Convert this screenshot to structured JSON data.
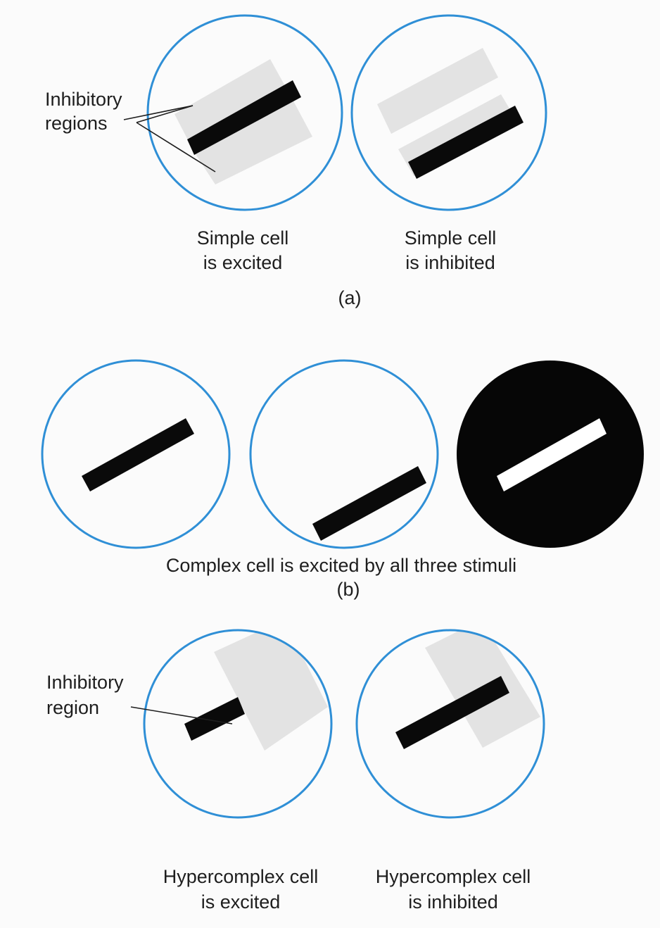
{
  "colors": {
    "background": "#fbfbfb",
    "circle_outline": "#2f8fd6",
    "inhibitory_region": "#e3e3e3",
    "stimulus_bar": "#0a0a0a",
    "dark_field": "#060606",
    "light_bar": "#ffffff",
    "text": "#1e1e1e"
  },
  "panel_a": {
    "callout_line1": "Inhibitory",
    "callout_line2": "regions",
    "left_caption_line1": "Simple cell",
    "left_caption_line2": "is excited",
    "right_caption_line1": "Simple cell",
    "right_caption_line2": "is inhibited",
    "panel_label": "(a)"
  },
  "panel_b": {
    "caption": "Complex cell is excited by all three stimuli",
    "panel_label": "(b)"
  },
  "panel_c": {
    "callout_line1": "Inhibitory",
    "callout_line2": "region",
    "left_caption_line1": "Hypercomplex cell",
    "left_caption_line2": "is excited",
    "right_caption_line1": "Hypercomplex cell",
    "right_caption_line2": "is inhibited"
  }
}
